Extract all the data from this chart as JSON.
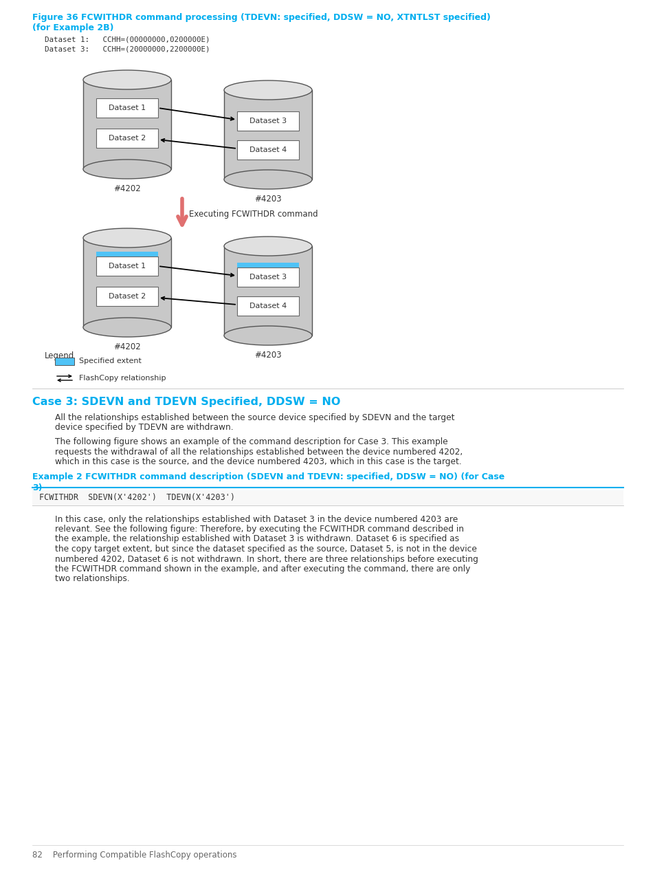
{
  "page_bg": "#ffffff",
  "fig_title_line1": "Figure 36 FCWITHDR command processing (TDEVN: specified, DDSW = NO, XTNTLST specified)",
  "fig_title_line2": "(for Example 2B)",
  "fig_title_color": "#00AEEF",
  "section_title": "Case 3: SDEVN and TDEVN Specified, DDSW = NO",
  "section_title_color": "#00AEEF",
  "example_title_line1": "Example 2 FCWITHDR command description (SDEVN and TDEVN: specified, DDSW = NO) (for Case",
  "example_title_line2": "3)",
  "example_title_color": "#00AEEF",
  "code_line": "FCWITHDR  SDEVN(X'4202')  TDEVN(X'4203')",
  "dataset_info_1": "Dataset 1:   CCHH=(00000000,0200000E)",
  "dataset_info_3": "Dataset 3:   CCHH=(20000000,2200000E)",
  "cyl_fill": "#c8c8c8",
  "cyl_top_fill": "#e0e0e0",
  "dataset_box_fill": "#ffffff",
  "blue_highlight": "#4FC3F7",
  "red_arrow_color": "#F08080",
  "body_text_color": "#333333",
  "footer_text": "82    Performing Compatible FlashCopy operations",
  "label_4202": "#4202",
  "label_4203": "#4203",
  "executing_text": "Executing FCWITHDR command",
  "legend_title": "Legend",
  "legend_specified": "Specified extent",
  "legend_flashcopy": "FlashCopy relationship",
  "para1_lines": [
    "All the relationships established between the source device specified by SDEVN and the target",
    "device specified by TDEVN are withdrawn."
  ],
  "para2_lines": [
    "The following figure shows an example of the command description for Case 3. This example",
    "requests the withdrawal of all the relationships established between the device numbered 4202,",
    "which in this case is the source, and the device numbered 4203, which in this case is the target."
  ],
  "para3_lines": [
    "In this case, only the relationships established with Dataset 3 in the device numbered 4203 are",
    "relevant. See the following figure: Therefore, by executing the FCWITHDR command described in",
    "the example, the relationship established with Dataset 3 is withdrawn. Dataset 6 is specified as",
    "the copy target extent, but since the dataset specified as the source, Dataset 5, is not in the device",
    "numbered 4202, Dataset 6 is not withdrawn. In short, there are three relationships before executing",
    "the FCWITHDR command shown in the example, and after executing the command, there are only",
    "two relationships."
  ]
}
